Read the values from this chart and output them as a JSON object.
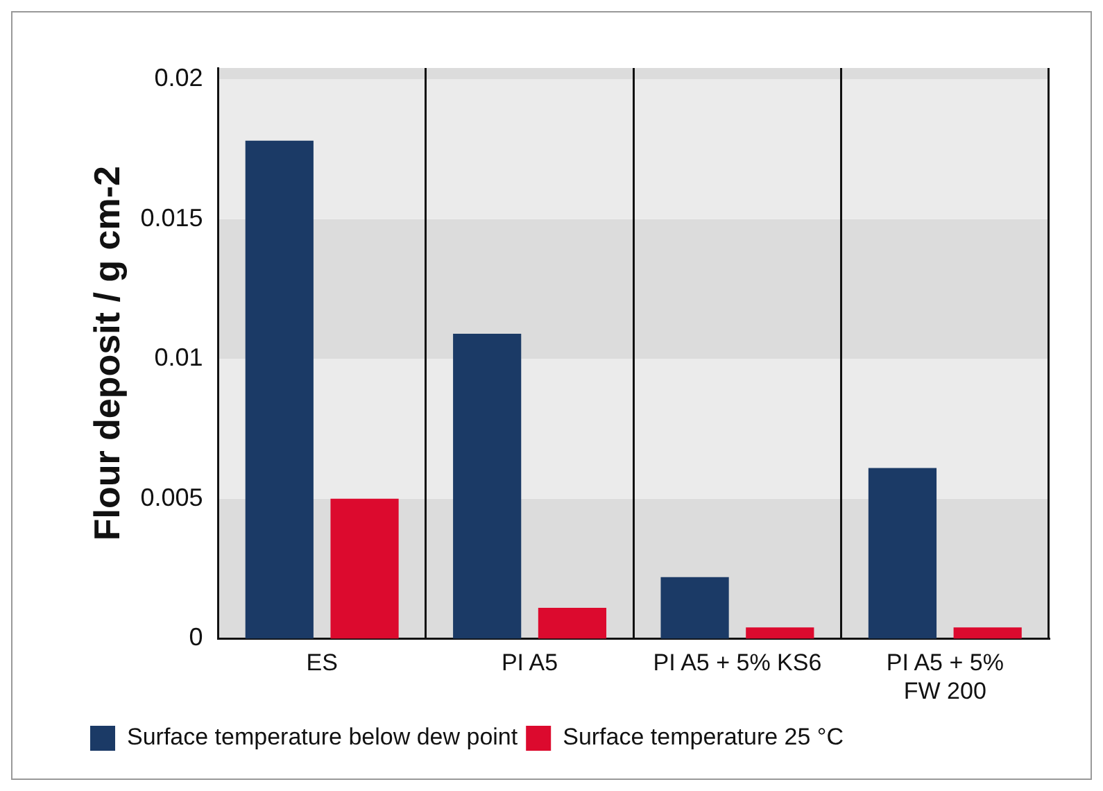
{
  "chart_data": {
    "type": "bar",
    "ylabel": "Flour deposit / g cm-2",
    "categories": [
      "ES",
      "PI A5",
      "PI A5 + 5% KS6",
      "PI A5 + 5% FW 200"
    ],
    "series": [
      {
        "name": "Surface temperature below dew point",
        "color": "#1b3a66",
        "values": [
          0.0178,
          0.0109,
          0.0022,
          0.0061
        ]
      },
      {
        "name": "Surface temperature 25 °C",
        "color": "#dc0a2e",
        "values": [
          0.005,
          0.0011,
          0.0004,
          0.0004
        ]
      }
    ],
    "ylim": [
      0,
      0.0204
    ],
    "yticks": [
      0,
      0.005,
      0.01,
      0.015,
      0.02
    ],
    "grid": true,
    "legend": "bottom"
  }
}
